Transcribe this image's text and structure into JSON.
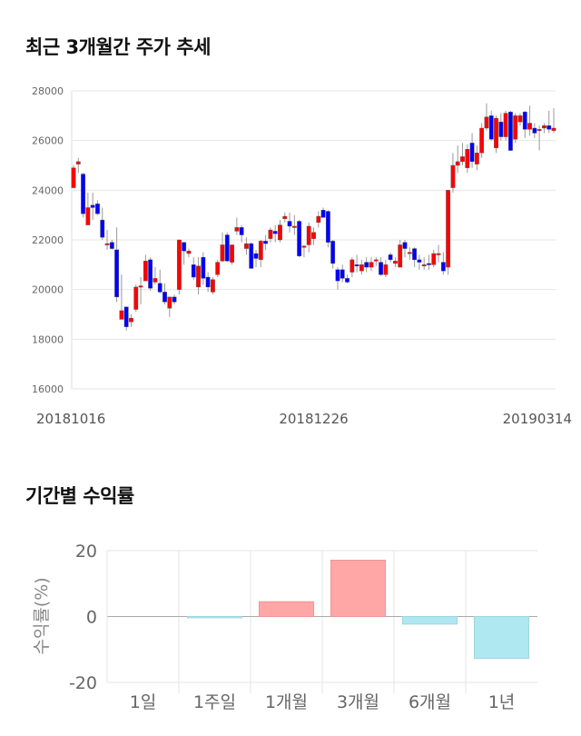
{
  "chart_data": [
    {
      "type": "candlestick",
      "title": "최근 3개월간 주가 추세",
      "ylim": [
        16000,
        28000
      ],
      "yticks": [
        "28000",
        "26000",
        "24000",
        "22000",
        "20000",
        "18000",
        "16000"
      ],
      "ytick_values": [
        28000,
        26000,
        24000,
        22000,
        20000,
        18000,
        16000
      ],
      "xtick_labels": [
        "20181016",
        "20181226",
        "20190314"
      ],
      "xtick_index": [
        0,
        50,
        100
      ],
      "grid": true,
      "colors": {
        "up": "#ff0000",
        "down": "#0000ff",
        "wick": "#999999"
      },
      "ohlc": [
        [
          24100,
          25000,
          24100,
          24900
        ],
        [
          25050,
          25300,
          24700,
          25150
        ],
        [
          24650,
          24700,
          22900,
          23050
        ],
        [
          22600,
          23900,
          22600,
          23300
        ],
        [
          23400,
          23900,
          22800,
          23300
        ],
        [
          23450,
          23600,
          23000,
          23050
        ],
        [
          22800,
          23300,
          22000,
          22100
        ],
        [
          21800,
          22400,
          21600,
          21850
        ],
        [
          21900,
          22000,
          21600,
          21650
        ],
        [
          21600,
          22500,
          19500,
          19700
        ],
        [
          18800,
          20600,
          18800,
          19150
        ],
        [
          19300,
          19300,
          18350,
          18500
        ],
        [
          18700,
          19000,
          18500,
          18850
        ],
        [
          19200,
          20200,
          19100,
          20100
        ],
        [
          20150,
          20500,
          19400,
          20150
        ],
        [
          20350,
          21400,
          20350,
          21150
        ],
        [
          21200,
          21300,
          19950,
          20050
        ],
        [
          20300,
          20900,
          20200,
          20450
        ],
        [
          20250,
          20800,
          19850,
          19900
        ],
        [
          19900,
          20250,
          19400,
          19500
        ],
        [
          19250,
          19700,
          18900,
          19700
        ],
        [
          19700,
          19800,
          19400,
          19500
        ],
        [
          20000,
          22000,
          19800,
          22000
        ],
        [
          21900,
          21900,
          21000,
          21550
        ],
        [
          21450,
          21650,
          21300,
          21550
        ],
        [
          21000,
          21300,
          20400,
          20500
        ],
        [
          20100,
          21300,
          19800,
          20950
        ],
        [
          21300,
          21500,
          20200,
          20450
        ],
        [
          20500,
          20700,
          19900,
          20100
        ],
        [
          19900,
          20500,
          19800,
          20400
        ],
        [
          20600,
          21200,
          20500,
          21100
        ],
        [
          21150,
          22300,
          21100,
          21800
        ],
        [
          22200,
          22300,
          21100,
          21150
        ],
        [
          21100,
          21800,
          21000,
          21800
        ],
        [
          22350,
          22900,
          22200,
          22500
        ],
        [
          22500,
          22600,
          21900,
          22200
        ],
        [
          21650,
          22100,
          21400,
          21850
        ],
        [
          21850,
          21900,
          20850,
          20850
        ],
        [
          21450,
          21600,
          20900,
          21250
        ],
        [
          21200,
          22000,
          20900,
          21950
        ],
        [
          21950,
          22200,
          21600,
          21850
        ],
        [
          22050,
          22500,
          21900,
          22400
        ],
        [
          22350,
          22600,
          21900,
          22250
        ],
        [
          22000,
          22800,
          21900,
          22600
        ],
        [
          22850,
          23100,
          22700,
          22950
        ],
        [
          22750,
          23100,
          22300,
          22550
        ],
        [
          22550,
          23000,
          22200,
          22550
        ],
        [
          22750,
          22800,
          21300,
          21350
        ],
        [
          21700,
          21800,
          21300,
          21750
        ],
        [
          21800,
          22700,
          21500,
          22550
        ],
        [
          22050,
          22500,
          21800,
          22300
        ],
        [
          22700,
          23150,
          22500,
          22950
        ],
        [
          23200,
          23300,
          22900,
          22900
        ],
        [
          23150,
          23200,
          21700,
          21900
        ],
        [
          21950,
          22000,
          20850,
          21050
        ],
        [
          20800,
          20900,
          20000,
          20350
        ],
        [
          20800,
          21000,
          20300,
          20450
        ],
        [
          20450,
          20600,
          20250,
          20300
        ],
        [
          20700,
          21300,
          20500,
          21200
        ],
        [
          21000,
          21400,
          20700,
          20950
        ],
        [
          20750,
          21200,
          20600,
          21000
        ],
        [
          21100,
          21300,
          20700,
          20900
        ],
        [
          20900,
          21300,
          20750,
          21100
        ],
        [
          21150,
          21300,
          20950,
          21200
        ],
        [
          21100,
          21300,
          20550,
          20600
        ],
        [
          20600,
          21200,
          20500,
          21000
        ],
        [
          21400,
          21500,
          21100,
          21200
        ],
        [
          21050,
          21300,
          20900,
          21150
        ],
        [
          20900,
          22000,
          20900,
          21800
        ],
        [
          21900,
          22000,
          21300,
          21650
        ],
        [
          21500,
          21700,
          21200,
          21500
        ],
        [
          21650,
          21700,
          20900,
          21200
        ],
        [
          21200,
          21400,
          20800,
          21100
        ],
        [
          21000,
          21300,
          20800,
          21000
        ],
        [
          21050,
          21400,
          20800,
          21000
        ],
        [
          21000,
          21600,
          20900,
          21450
        ],
        [
          21450,
          21800,
          21100,
          21450
        ],
        [
          21100,
          21500,
          20600,
          20750
        ],
        [
          20900,
          24000,
          20600,
          24000
        ],
        [
          24100,
          25500,
          23900,
          25000
        ],
        [
          25000,
          25800,
          24700,
          25150
        ],
        [
          25150,
          25900,
          25000,
          25350
        ],
        [
          24900,
          25850,
          24700,
          25650
        ],
        [
          25900,
          26300,
          24900,
          25150
        ],
        [
          25050,
          25800,
          24800,
          25500
        ],
        [
          25500,
          26700,
          25300,
          26500
        ],
        [
          26500,
          27500,
          26400,
          26950
        ],
        [
          27000,
          27200,
          26000,
          26050
        ],
        [
          25700,
          27000,
          25500,
          26900
        ],
        [
          26750,
          27100,
          26000,
          26150
        ],
        [
          26150,
          27200,
          26000,
          27100
        ],
        [
          27150,
          27200,
          25600,
          25600
        ],
        [
          26050,
          27100,
          25900,
          27000
        ],
        [
          26750,
          27100,
          26600,
          27000
        ],
        [
          27150,
          27200,
          26100,
          26450
        ],
        [
          26450,
          27400,
          26200,
          26700
        ],
        [
          26500,
          26700,
          26100,
          26300
        ],
        [
          26450,
          26600,
          25600,
          26450
        ],
        [
          26500,
          26700,
          26300,
          26600
        ],
        [
          26600,
          27200,
          26300,
          26450
        ],
        [
          26400,
          27300,
          26300,
          26500
        ]
      ]
    },
    {
      "type": "bar",
      "title": "기간별 수익률",
      "ylabel": "수익률(%)",
      "ylim": [
        -20,
        20
      ],
      "yticks": [
        "20",
        "0",
        "-20"
      ],
      "ytick_values": [
        20,
        0,
        -20
      ],
      "categories": [
        "1일",
        "1주일",
        "1개월",
        "3개월",
        "6개월",
        "1년"
      ],
      "values": [
        0,
        -0.4,
        4.5,
        17.1,
        -2.3,
        -12.7
      ],
      "colors": {
        "positive": "#ffa6a6",
        "positive_border": "#f09595",
        "negative": "#b0e8f2",
        "negative_border": "#9fd5de"
      },
      "grid": true
    }
  ]
}
